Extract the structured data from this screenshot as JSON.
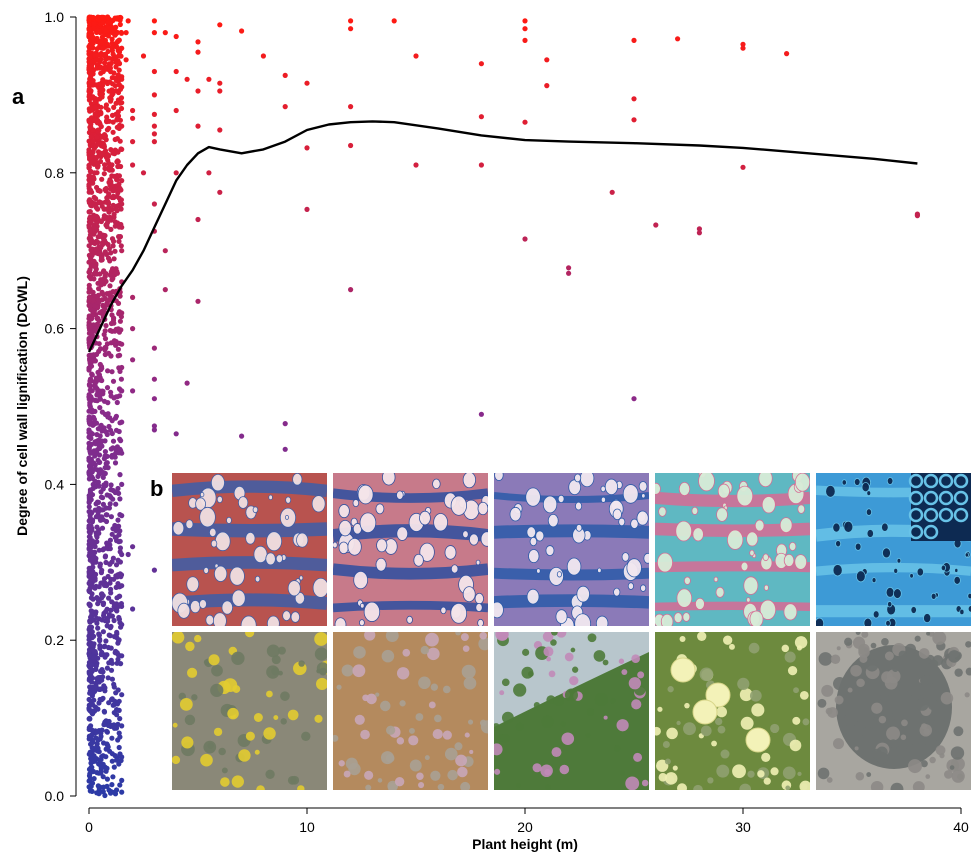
{
  "panels": {
    "a": "a",
    "b": "b"
  },
  "chart_data": {
    "type": "scatter",
    "xlabel": "Plant height (m)",
    "ylabel": "Degree of cell wall lignification (DCWL)",
    "xlim": [
      0,
      40
    ],
    "ylim": [
      0,
      1
    ],
    "x_ticks": [
      0,
      10,
      20,
      30,
      40
    ],
    "y_ticks": [
      0.0,
      0.2,
      0.4,
      0.6,
      0.8,
      1.0
    ],
    "y_tick_labels": [
      "0.0",
      "0.2",
      "0.4",
      "0.6",
      "0.8",
      "1.0"
    ],
    "color_scale": {
      "low": "#2b3aa6",
      "mid": "#8a2a8a",
      "high": "#ff1a12"
    },
    "points": [
      [
        3,
        0.29
      ],
      [
        4.5,
        0.53
      ],
      [
        3,
        0.575
      ],
      [
        3,
        0.535
      ],
      [
        3,
        0.51
      ],
      [
        3,
        0.475
      ],
      [
        3,
        0.47
      ],
      [
        4,
        0.465
      ],
      [
        7,
        0.462
      ],
      [
        9,
        0.478
      ],
      [
        9,
        0.445
      ],
      [
        18,
        0.49
      ],
      [
        25,
        0.51
      ],
      [
        12,
        0.65
      ],
      [
        5,
        0.635
      ],
      [
        3.5,
        0.65
      ],
      [
        5,
        0.74
      ],
      [
        3,
        0.725
      ],
      [
        3.5,
        0.7
      ],
      [
        10,
        0.753
      ],
      [
        5.5,
        0.8
      ],
      [
        6,
        0.775
      ],
      [
        3,
        0.76
      ],
      [
        4,
        0.8
      ],
      [
        2.5,
        0.8
      ],
      [
        2,
        0.88
      ],
      [
        2.5,
        0.95
      ],
      [
        3,
        0.98
      ],
      [
        3,
        0.995
      ],
      [
        3.5,
        0.98
      ],
      [
        4,
        0.975
      ],
      [
        5,
        0.968
      ],
      [
        5,
        0.955
      ],
      [
        6,
        0.99
      ],
      [
        7,
        0.982
      ],
      [
        8,
        0.95
      ],
      [
        9,
        0.925
      ],
      [
        10,
        0.915
      ],
      [
        6,
        0.915
      ],
      [
        6,
        0.905
      ],
      [
        5,
        0.905
      ],
      [
        5.5,
        0.92
      ],
      [
        4.5,
        0.92
      ],
      [
        4,
        0.93
      ],
      [
        3,
        0.93
      ],
      [
        3,
        0.9
      ],
      [
        4,
        0.88
      ],
      [
        9,
        0.885
      ],
      [
        12,
        0.885
      ],
      [
        12,
        0.995
      ],
      [
        12,
        0.985
      ],
      [
        14,
        0.995
      ],
      [
        15,
        0.95
      ],
      [
        18,
        0.94
      ],
      [
        18,
        0.872
      ],
      [
        20,
        0.865
      ],
      [
        20,
        0.995
      ],
      [
        20,
        0.985
      ],
      [
        20,
        0.97
      ],
      [
        21,
        0.945
      ],
      [
        21,
        0.912
      ],
      [
        25,
        0.97
      ],
      [
        25,
        0.895
      ],
      [
        25,
        0.868
      ],
      [
        27,
        0.972
      ],
      [
        30,
        0.965
      ],
      [
        30,
        0.96
      ],
      [
        32,
        0.953
      ],
      [
        10,
        0.832
      ],
      [
        12,
        0.835
      ],
      [
        15,
        0.81
      ],
      [
        18,
        0.81
      ],
      [
        30,
        0.807
      ],
      [
        24,
        0.775
      ],
      [
        26,
        0.733
      ],
      [
        28,
        0.728
      ],
      [
        28,
        0.723
      ],
      [
        38,
        0.747
      ],
      [
        38,
        0.745
      ],
      [
        20,
        0.715
      ],
      [
        22,
        0.678
      ],
      [
        22,
        0.671
      ],
      [
        6,
        0.855
      ],
      [
        5,
        0.86
      ],
      [
        3,
        0.85
      ],
      [
        3,
        0.86
      ],
      [
        3,
        0.875
      ],
      [
        3,
        0.84
      ],
      [
        2,
        0.87
      ],
      [
        2,
        0.84
      ],
      [
        2,
        0.81
      ],
      [
        1.5,
        0.96
      ],
      [
        1.5,
        0.92
      ],
      [
        1.5,
        0.89
      ],
      [
        1.5,
        0.86
      ],
      [
        1.5,
        0.83
      ],
      [
        1.5,
        0.79
      ],
      [
        1.5,
        0.76
      ],
      [
        1.5,
        0.73
      ],
      [
        1.5,
        0.7
      ],
      [
        1.5,
        0.66
      ],
      [
        1.5,
        0.62
      ],
      [
        1.5,
        0.58
      ],
      [
        1.5,
        0.55
      ],
      [
        1.5,
        0.52
      ],
      [
        1.5,
        0.48
      ],
      [
        1.5,
        0.44
      ],
      [
        1.5,
        0.4
      ],
      [
        1.5,
        0.36
      ],
      [
        1.5,
        0.31
      ],
      [
        1.5,
        0.27
      ],
      [
        1.5,
        0.22
      ],
      [
        1.5,
        0.18
      ],
      [
        1.5,
        0.13
      ],
      [
        1.5,
        0.09
      ],
      [
        1.5,
        0.05
      ],
      [
        1.5,
        0.02
      ],
      [
        1.5,
        0.005
      ],
      [
        2,
        0.32
      ],
      [
        2,
        0.24
      ],
      [
        1.8,
        0.31
      ],
      [
        2,
        0.64
      ],
      [
        2,
        0.6
      ],
      [
        2,
        0.56
      ],
      [
        2,
        0.52
      ],
      [
        1.7,
        0.98
      ],
      [
        1.7,
        0.945
      ],
      [
        1.8,
        0.995
      ]
    ],
    "dense_cluster": {
      "x_range": [
        0,
        1.5
      ],
      "y_range": [
        0,
        1
      ],
      "count": 1800
    },
    "smooth_line": {
      "x": [
        0,
        0.5,
        1,
        1.5,
        2,
        2.5,
        3,
        3.5,
        4,
        4.5,
        5,
        5.5,
        6,
        7,
        8,
        9,
        10,
        11,
        12,
        13,
        14,
        16,
        18,
        20,
        22,
        25,
        28,
        30,
        33,
        36,
        38
      ],
      "y": [
        0.57,
        0.6,
        0.63,
        0.655,
        0.675,
        0.7,
        0.73,
        0.76,
        0.79,
        0.81,
        0.825,
        0.833,
        0.83,
        0.825,
        0.83,
        0.84,
        0.855,
        0.862,
        0.865,
        0.866,
        0.865,
        0.857,
        0.848,
        0.842,
        0.84,
        0.838,
        0.835,
        0.832,
        0.825,
        0.818,
        0.812
      ],
      "color": "#000000"
    }
  },
  "photos": {
    "micro": [
      {
        "name": "micro-1",
        "colors": [
          "#b8534f",
          "#3c5ea8",
          "#f0e0e2"
        ]
      },
      {
        "name": "micro-2",
        "colors": [
          "#c77a8a",
          "#2d4fa0",
          "#f5e5ea"
        ]
      },
      {
        "name": "micro-3",
        "colors": [
          "#8b7ab8",
          "#2b5aa8",
          "#f2e8f0"
        ]
      },
      {
        "name": "micro-4",
        "colors": [
          "#5fb8c2",
          "#d86a94",
          "#d8ecd8"
        ]
      },
      {
        "name": "micro-5",
        "colors": [
          "#3d9ad6",
          "#68c3e8",
          "#0d2a52"
        ]
      }
    ],
    "plant": [
      {
        "name": "plant-1",
        "colors": [
          "#8a8878",
          "#e2cc30",
          "#6e7a62"
        ]
      },
      {
        "name": "plant-2",
        "colors": [
          "#b48a5e",
          "#a8a094",
          "#c8a6b8"
        ]
      },
      {
        "name": "plant-3",
        "colors": [
          "#b8c6cc",
          "#c18ab8",
          "#4e7a3a"
        ]
      },
      {
        "name": "plant-4",
        "colors": [
          "#6d8a3e",
          "#f0f0b4",
          "#8fa070"
        ]
      },
      {
        "name": "plant-5",
        "colors": [
          "#a8a6a0",
          "#6e7270",
          "#8c8a86"
        ]
      }
    ]
  }
}
